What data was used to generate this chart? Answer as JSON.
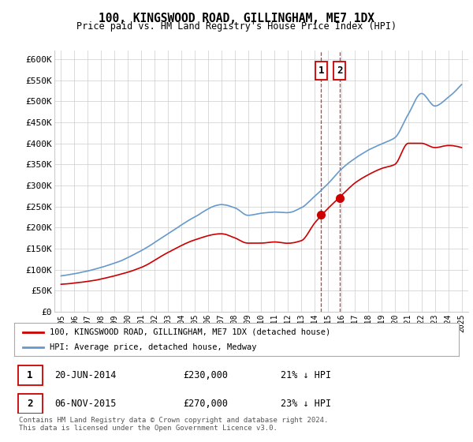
{
  "title": "100, KINGSWOOD ROAD, GILLINGHAM, ME7 1DX",
  "subtitle": "Price paid vs. HM Land Registry's House Price Index (HPI)",
  "red_label": "100, KINGSWOOD ROAD, GILLINGHAM, ME7 1DX (detached house)",
  "blue_label": "HPI: Average price, detached house, Medway",
  "transaction1_date": "20-JUN-2014",
  "transaction1_price": 230000,
  "transaction1_hpi": "21% ↓ HPI",
  "transaction1_year": 2014.47,
  "transaction2_date": "06-NOV-2015",
  "transaction2_price": 270000,
  "transaction2_hpi": "23% ↓ HPI",
  "transaction2_year": 2015.85,
  "ylim": [
    0,
    620000
  ],
  "xlim": [
    1994.5,
    2025.5
  ],
  "yticks": [
    0,
    50000,
    100000,
    150000,
    200000,
    250000,
    300000,
    350000,
    400000,
    450000,
    500000,
    550000,
    600000
  ],
  "footnote": "Contains HM Land Registry data © Crown copyright and database right 2024.\nThis data is licensed under the Open Government Licence v3.0.",
  "background_color": "#ffffff",
  "grid_color": "#cccccc",
  "red_color": "#cc0000",
  "blue_color": "#6699cc",
  "hpi_keypoints_x": [
    1995,
    1997,
    1999,
    2001,
    2003,
    2005,
    2007,
    2008,
    2009,
    2010,
    2011,
    2012,
    2013,
    2014,
    2015,
    2016,
    2017,
    2018,
    2019,
    2020,
    2021,
    2022,
    2023,
    2024,
    2025
  ],
  "hpi_keypoints_y": [
    85000,
    97000,
    115000,
    145000,
    185000,
    225000,
    255000,
    248000,
    230000,
    235000,
    238000,
    237000,
    248000,
    275000,
    305000,
    340000,
    365000,
    385000,
    400000,
    415000,
    470000,
    520000,
    490000,
    510000,
    540000
  ],
  "price_keypoints_x": [
    1995,
    1997,
    1999,
    2001,
    2003,
    2005,
    2007,
    2008,
    2009,
    2010,
    2011,
    2012,
    2013,
    2014,
    2015,
    2016,
    2017,
    2018,
    2019,
    2020,
    2021,
    2022,
    2023,
    2024,
    2025
  ],
  "price_keypoints_y": [
    65000,
    72000,
    85000,
    105000,
    140000,
    170000,
    185000,
    175000,
    162000,
    162000,
    165000,
    162000,
    168000,
    210000,
    245000,
    275000,
    305000,
    325000,
    340000,
    350000,
    400000,
    400000,
    390000,
    395000,
    390000
  ]
}
